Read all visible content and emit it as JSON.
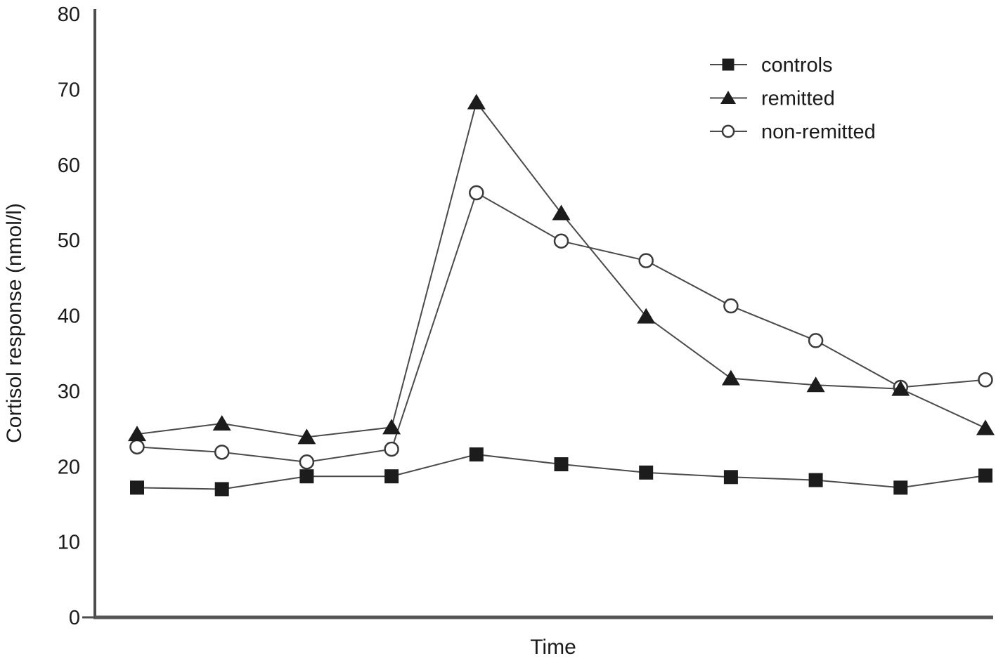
{
  "figure": {
    "background": "#ffffff",
    "axis_color": "#4d4d4d",
    "line_color": "#4a4a4a",
    "marker_fill": "#1c1c1c",
    "open_marker_fill": "#ffffff",
    "text_color": "#1a1a1a"
  },
  "chart_data": {
    "type": "line",
    "title": "",
    "xlabel": "Time",
    "ylabel": "Cortisol response (nmol/l)",
    "ylim": [
      0,
      80
    ],
    "yticks": [
      0,
      10,
      20,
      30,
      40,
      50,
      60,
      70,
      80
    ],
    "x_tick_labels": [],
    "x_points": 11,
    "grid": false,
    "legend_position": "top-right",
    "legend": [
      "controls",
      "remitted",
      "non-remitted"
    ],
    "series": [
      {
        "name": "controls",
        "marker": "square",
        "marker_style": "filled",
        "values": [
          17.2,
          17.0,
          18.7,
          18.7,
          21.6,
          20.3,
          19.2,
          18.6,
          18.2,
          17.2,
          18.8
        ]
      },
      {
        "name": "remitted",
        "marker": "triangle",
        "marker_style": "filled",
        "values": [
          24.3,
          25.7,
          23.9,
          25.2,
          68.3,
          53.6,
          39.9,
          31.7,
          30.8,
          30.3,
          25.1
        ]
      },
      {
        "name": "non-remitted",
        "marker": "circle",
        "marker_style": "open",
        "values": [
          22.6,
          21.9,
          20.6,
          22.3,
          56.3,
          49.9,
          47.3,
          41.3,
          36.7,
          30.5,
          31.5
        ]
      }
    ]
  }
}
